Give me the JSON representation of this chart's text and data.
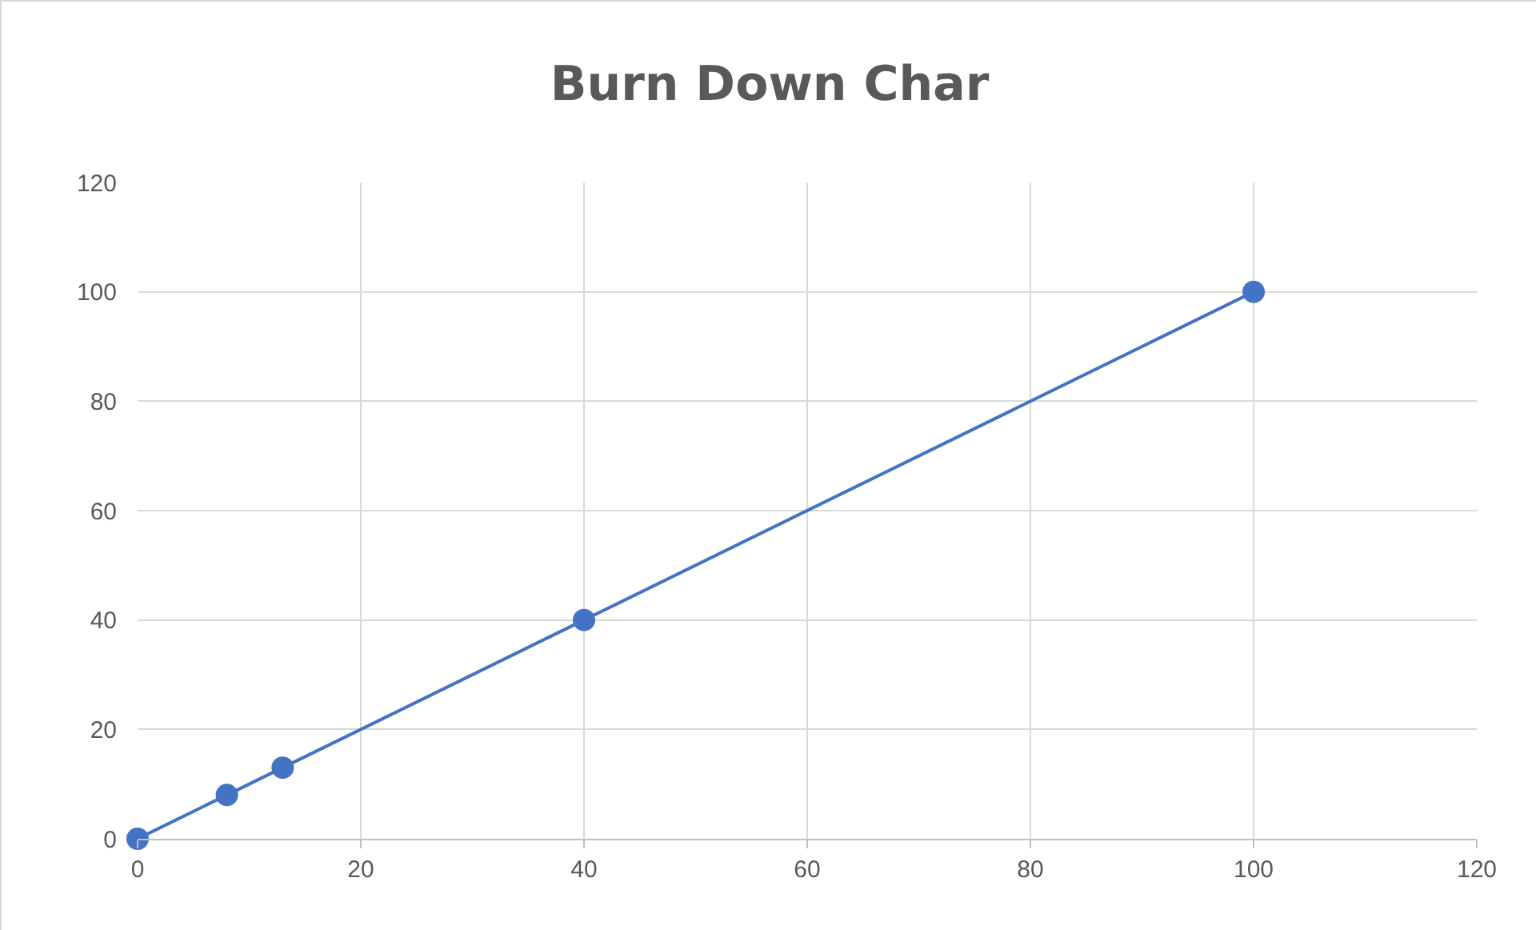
{
  "chart_data": {
    "type": "line",
    "title": "Burn Down Char",
    "x": [
      0,
      8,
      13,
      40,
      100
    ],
    "values": [
      0,
      8,
      13,
      40,
      100
    ],
    "color": "#4472c4",
    "xlim": [
      0,
      120
    ],
    "xticks": [
      0,
      20,
      40,
      60,
      80,
      100,
      120
    ],
    "ylim": [
      0,
      120
    ],
    "yticks": [
      0,
      20,
      40,
      60,
      80,
      100,
      120
    ],
    "grid": true,
    "marker": "circle",
    "line_style": "solid"
  }
}
